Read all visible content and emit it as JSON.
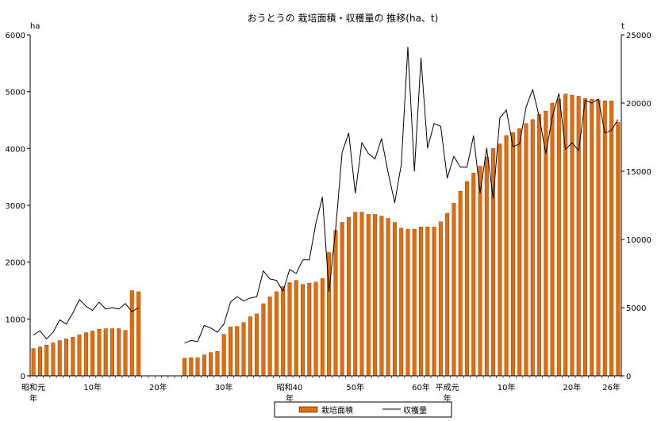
{
  "chart_data": {
    "type": "bar",
    "title": "おうとうの 栽培面積・収穫量の 推移(ha、t)",
    "left_unit": "ha",
    "right_unit": "t",
    "left_axis": {
      "min": 0,
      "max": 6000,
      "ticks": [
        "0",
        "1000",
        "2000",
        "3000",
        "4000",
        "5000",
        "6000"
      ]
    },
    "right_axis": {
      "min": 0,
      "max": 25000,
      "ticks": [
        "0",
        "5000",
        "10000",
        "15000",
        "20000",
        "25000"
      ]
    },
    "x_tick_labels": [
      {
        "index": 0,
        "lines": [
          "昭和元",
          "年"
        ]
      },
      {
        "index": 9,
        "lines": [
          "10年"
        ]
      },
      {
        "index": 19,
        "lines": [
          "20年"
        ]
      },
      {
        "index": 29,
        "lines": [
          "30年"
        ]
      },
      {
        "index": 39,
        "lines": [
          "昭和40",
          "年"
        ]
      },
      {
        "index": 49,
        "lines": [
          "50年"
        ]
      },
      {
        "index": 59,
        "lines": [
          "60年"
        ]
      },
      {
        "index": 63,
        "lines": [
          "平成元",
          "年"
        ]
      },
      {
        "index": 72,
        "lines": [
          "10年"
        ]
      },
      {
        "index": 82,
        "lines": [
          "20年"
        ]
      },
      {
        "index": 88,
        "lines": [
          "26年"
        ]
      }
    ],
    "series": [
      {
        "name": "栽培面積",
        "type": "bar",
        "axis": "left",
        "color": "#e46c0a",
        "values": [
          480,
          510,
          540,
          580,
          620,
          650,
          680,
          720,
          760,
          790,
          820,
          830,
          830,
          830,
          800,
          1500,
          1480,
          null,
          null,
          null,
          null,
          null,
          null,
          310,
          320,
          320,
          370,
          410,
          430,
          730,
          860,
          870,
          940,
          1040,
          1090,
          1270,
          1390,
          1480,
          1570,
          1640,
          1680,
          1610,
          1630,
          1650,
          1710,
          2170,
          2560,
          2700,
          2790,
          2880,
          2880,
          2840,
          2840,
          2810,
          2770,
          2700,
          2600,
          2580,
          2580,
          2620,
          2620,
          2620,
          2710,
          2860,
          3040,
          3250,
          3420,
          3570,
          3690,
          3850,
          4000,
          4080,
          4230,
          4280,
          4350,
          4440,
          4510,
          4600,
          4660,
          4800,
          4870,
          4960,
          4940,
          4920,
          4880,
          4870,
          4860,
          4840,
          4840,
          4460
        ]
      },
      {
        "name": "収穫量",
        "type": "line",
        "axis": "right",
        "color": "#000000",
        "values": [
          3000,
          3300,
          2700,
          3200,
          4100,
          3800,
          4600,
          5600,
          5100,
          4800,
          5400,
          4900,
          5000,
          4900,
          5300,
          4700,
          5000,
          null,
          null,
          null,
          null,
          null,
          null,
          2400,
          2600,
          2500,
          3700,
          3500,
          3200,
          3800,
          5400,
          5800,
          5500,
          5700,
          5800,
          7700,
          7100,
          7000,
          6200,
          7800,
          7500,
          8500,
          8500,
          11200,
          13100,
          6200,
          10700,
          16400,
          17800,
          13400,
          17100,
          16300,
          15900,
          17400,
          14900,
          12700,
          15500,
          24100,
          15000,
          23300,
          16700,
          18500,
          18300,
          14500,
          16100,
          15300,
          15300,
          17600,
          13400,
          16700,
          13000,
          18900,
          19500,
          16800,
          17000,
          19700,
          21000,
          19000,
          16300,
          19000,
          20700,
          16600,
          17100,
          16500,
          20200,
          20000,
          20300,
          17800,
          18000,
          18800
        ]
      }
    ],
    "legend": {
      "position": "bottom-center",
      "items": [
        "栽培面積",
        "収穫量"
      ]
    }
  }
}
